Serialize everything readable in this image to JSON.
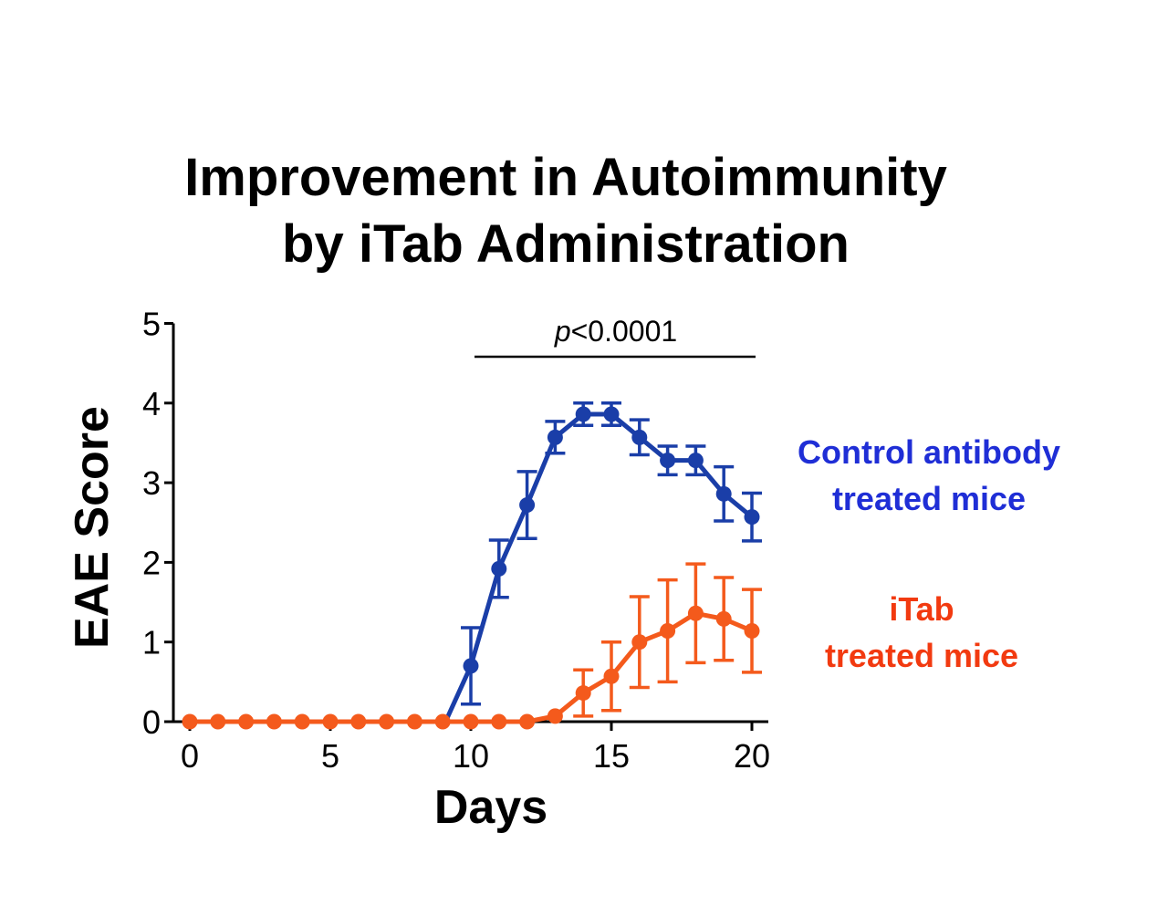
{
  "chart_data": {
    "type": "line",
    "title_line1": "Improvement in Autoimmunity",
    "title_line2": "by iTab Administration",
    "xlabel": "Days",
    "ylabel": "EAE Score",
    "xlim": [
      0,
      21
    ],
    "ylim": [
      0,
      5
    ],
    "x_ticks": [
      0,
      5,
      10,
      15,
      20
    ],
    "y_ticks": [
      0,
      1,
      2,
      3,
      4,
      5
    ],
    "grid": false,
    "legend_placement": "right",
    "significance": {
      "label_italic": "p",
      "label_rest": "<0.0001",
      "x_start": 10,
      "x_end": 20
    },
    "series": [
      {
        "name_line1": "Control antibody",
        "name_line2": "treated mice",
        "color": "#1a3ea8",
        "label_color": "#1f2ed6",
        "x": [
          10,
          11,
          12,
          13,
          14,
          15,
          16,
          17,
          18,
          19,
          20
        ],
        "y": [
          0.7,
          1.92,
          2.72,
          3.57,
          3.86,
          3.86,
          3.57,
          3.28,
          3.28,
          2.86,
          2.57
        ],
        "err": [
          0.48,
          0.36,
          0.42,
          0.2,
          0.14,
          0.14,
          0.22,
          0.18,
          0.18,
          0.34,
          0.3
        ],
        "line_start": {
          "x": 9.1,
          "y": 0
        }
      },
      {
        "name_line1": "iTab",
        "name_line2": "treated mice",
        "color": "#f45a1c",
        "label_color": "#f23a10",
        "x": [
          0,
          1,
          2,
          3,
          4,
          5,
          6,
          7,
          8,
          9,
          10,
          11,
          12,
          13,
          14,
          15,
          16,
          17,
          18,
          19,
          20
        ],
        "y": [
          0,
          0,
          0,
          0,
          0,
          0,
          0,
          0,
          0,
          0,
          0,
          0,
          0,
          0.07,
          0.36,
          0.57,
          1.0,
          1.14,
          1.36,
          1.29,
          1.14
        ],
        "err": [
          0,
          0,
          0,
          0,
          0,
          0,
          0,
          0,
          0,
          0,
          0,
          0,
          0,
          0,
          0.29,
          0.43,
          0.57,
          0.64,
          0.62,
          0.52,
          0.52
        ]
      }
    ]
  }
}
